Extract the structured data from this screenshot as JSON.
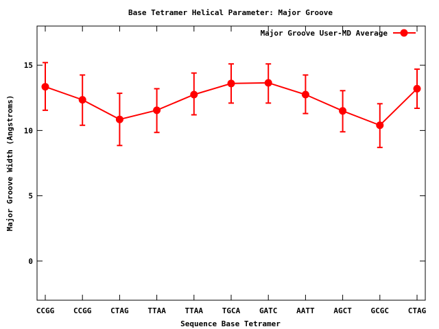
{
  "chart_data": {
    "type": "line",
    "title": "Base Tetramer Helical Parameter: Major Groove",
    "xlabel": "Sequence Base Tetramer",
    "ylabel": "Major Groove Width (Angstroms)",
    "ylim": [
      -3,
      18
    ],
    "yticks": [
      0,
      5,
      10,
      15
    ],
    "categories": [
      "CCGG",
      "CCGG",
      "CTAG",
      "TTAA",
      "TTAA",
      "TGCA",
      "GATC",
      "AATT",
      "AGCT",
      "GCGC",
      "CTAG"
    ],
    "grid": false,
    "legend_position": "top-right",
    "series": [
      {
        "name": "Major Groove User-MD Average",
        "color": "#ff0000",
        "values": [
          13.35,
          12.35,
          10.85,
          11.55,
          12.75,
          13.6,
          13.65,
          12.75,
          11.5,
          10.4,
          13.2
        ],
        "err_low": [
          11.55,
          10.4,
          8.85,
          9.85,
          11.2,
          12.1,
          12.1,
          11.3,
          9.9,
          8.7,
          11.7
        ],
        "err_high": [
          15.2,
          14.25,
          12.85,
          13.2,
          14.4,
          15.1,
          15.1,
          14.25,
          13.05,
          12.05,
          14.7
        ]
      }
    ]
  }
}
